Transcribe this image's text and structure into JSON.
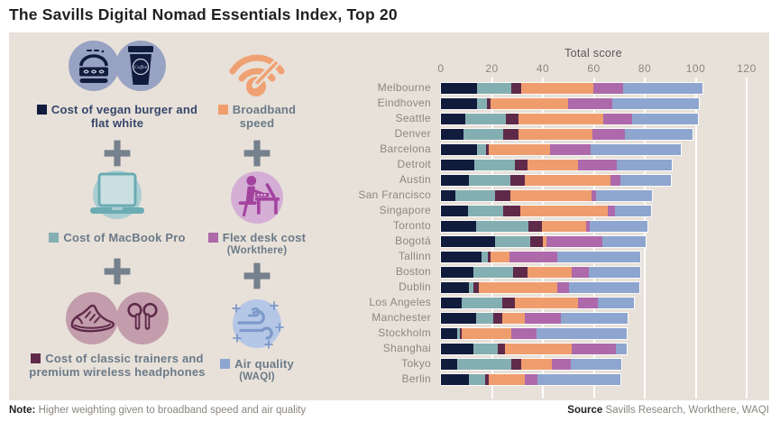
{
  "title": "The Savills Digital Nomad Essentials Index, Top 20",
  "note": {
    "prefix": "Note:",
    "text": " Higher weighting given to broadband speed and air quality"
  },
  "source": {
    "prefix": "Source",
    "text": " Savills Research, Workthere, WAQI"
  },
  "colors": {
    "panel_bg": "#e8e1d9",
    "navy": "#111c3d",
    "teal": "#84afb2",
    "maroon": "#5f2a49",
    "orange": "#f09d6e",
    "purple": "#ad69aa",
    "blue": "#8ea6cf",
    "plus_gray": "#75818d"
  },
  "legend": {
    "items": [
      {
        "id": "vegan-burger",
        "label": "Cost of vegan burger and flat white",
        "sub": "",
        "swatch": "#111c3d"
      },
      {
        "id": "broadband",
        "label": "Broadband speed",
        "sub": "",
        "swatch": "#f09d6e"
      },
      {
        "id": "macbook",
        "label": "Cost of MacBook Pro",
        "sub": "",
        "swatch": "#84afb2"
      },
      {
        "id": "flex-desk",
        "label": "Flex desk cost",
        "sub": "(Workthere)",
        "swatch": "#ad69aa"
      },
      {
        "id": "trainers",
        "label": "Cost of classic trainers and premium wireless headphones",
        "sub": "",
        "swatch": "#5f2a49"
      },
      {
        "id": "air-quality",
        "label": "Air quality",
        "sub": "(WAQI)",
        "swatch": "#8ea6cf"
      }
    ]
  },
  "chart_data": {
    "type": "bar",
    "variant": "horizontal-stacked",
    "title": "Total score",
    "x_ticks": [
      0,
      20,
      40,
      60,
      80,
      100,
      120
    ],
    "xlim": [
      0,
      120
    ],
    "grid": "white vertical gridlines",
    "categories": [
      "Melbourne",
      "Eindhoven",
      "Seattle",
      "Denver",
      "Barcelona",
      "Detroit",
      "Austin",
      "San Francisco",
      "Singapore",
      "Toronto",
      "Bogotá",
      "Tallinn",
      "Boston",
      "Dublin",
      "Los Angeles",
      "Manchester",
      "Stockholm",
      "Shanghai",
      "Tokyo",
      "Berlin"
    ],
    "series": [
      {
        "id": "vegan-burger",
        "name": "Cost of vegan burger and flat white",
        "color": "#111c3d",
        "values": [
          14.0,
          14.3,
          9.6,
          9.0,
          14.0,
          13.2,
          11.1,
          5.8,
          10.5,
          13.8,
          21.1,
          16.1,
          12.9,
          10.8,
          8.0,
          13.7,
          6.4,
          12.9,
          6.4,
          10.8
        ]
      },
      {
        "id": "macbook",
        "name": "Cost of MacBook Pro",
        "color": "#84afb2",
        "values": [
          13.5,
          3.9,
          15.8,
          15.6,
          3.7,
          15.8,
          16.0,
          15.6,
          13.8,
          20.4,
          14.0,
          2.3,
          15.4,
          2.1,
          16.0,
          6.8,
          1.2,
          9.4,
          21.1,
          6.5
        ]
      },
      {
        "id": "trainers",
        "name": "Cost of classic trainers and premium wireless headphones",
        "color": "#5f2a49",
        "values": [
          4.0,
          1.2,
          5.0,
          5.8,
          1.2,
          5.1,
          5.8,
          5.7,
          6.7,
          5.4,
          4.9,
          1.2,
          5.8,
          1.8,
          5.0,
          3.5,
          0.4,
          2.9,
          3.9,
          1.6
        ]
      },
      {
        "id": "broadband",
        "name": "Broadband speed",
        "color": "#f09d6e",
        "values": [
          28.5,
          30.4,
          33.3,
          28.9,
          24.0,
          19.6,
          33.5,
          32.2,
          34.5,
          17.5,
          1.5,
          7.3,
          17.1,
          31.0,
          24.8,
          8.8,
          19.5,
          26.1,
          12.2,
          14.0
        ]
      },
      {
        "id": "flex-desk",
        "name": "Flex desk cost (Workthere)",
        "color": "#ad69aa",
        "values": [
          11.5,
          17.5,
          11.3,
          12.9,
          15.9,
          15.4,
          4.0,
          1.5,
          2.9,
          1.4,
          21.9,
          18.7,
          6.7,
          4.7,
          7.8,
          14.3,
          10.2,
          17.5,
          7.4,
          5.0
        ]
      },
      {
        "id": "air-quality",
        "name": "Air quality (WAQI)",
        "color": "#8ea6cf",
        "values": [
          31.0,
          34.0,
          26.0,
          26.7,
          35.3,
          21.4,
          19.9,
          22.0,
          14.0,
          22.5,
          17.0,
          32.7,
          20.3,
          27.6,
          14.2,
          26.1,
          35.1,
          4.0,
          19.9,
          32.4
        ]
      }
    ],
    "totals": [
      102.5,
      101.3,
      101.0,
      98.9,
      94.1,
      90.5,
      90.3,
      82.8,
      82.4,
      81.0,
      80.4,
      78.3,
      78.2,
      78.0,
      75.8,
      73.2,
      72.8,
      72.8,
      70.9,
      70.3
    ]
  }
}
